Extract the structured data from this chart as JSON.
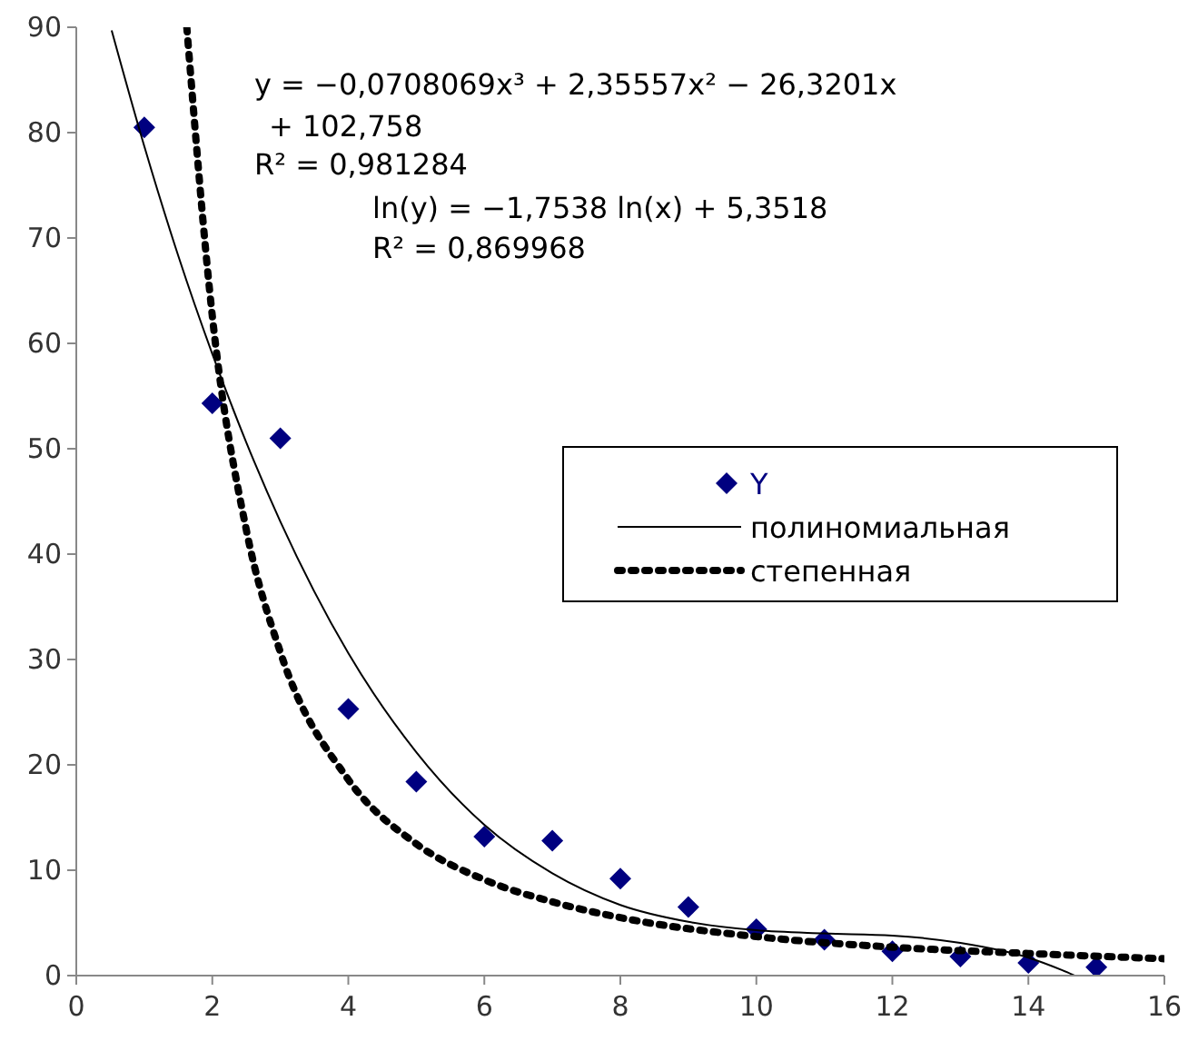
{
  "chart_data": {
    "type": "scatter",
    "xlim": [
      0,
      16
    ],
    "ylim": [
      0,
      90
    ],
    "xticks": [
      0,
      2,
      4,
      6,
      8,
      10,
      12,
      14,
      16
    ],
    "yticks": [
      0,
      10,
      20,
      30,
      40,
      50,
      60,
      70,
      80,
      90
    ],
    "grid": false,
    "legend": "right",
    "annotations": [
      "y = −0,0708069x³ + 2,35557x² − 26,3201x",
      "+ 102,758",
      "R² = 0,981284",
      "ln(y) = −1,7538 ln(x) + 5,3518",
      "R² = 0,869968"
    ],
    "series": [
      {
        "name": "Y",
        "color": "#000080",
        "marker": "diamond",
        "x": [
          1,
          2,
          3,
          4,
          5,
          6,
          7,
          8,
          9,
          10,
          11,
          12,
          13,
          14,
          15
        ],
        "values": [
          80.5,
          54.3,
          51,
          25.3,
          18.4,
          13.2,
          12.8,
          9.2,
          6.5,
          4.4,
          3.4,
          2.3,
          1.8,
          1.2,
          0.8
        ]
      },
      {
        "name": "полиномиальная",
        "type": "line",
        "color": "#000000",
        "marker": "none",
        "line_style": "solid",
        "x": [
          0.52,
          1,
          1.5,
          2,
          2.5,
          3,
          4,
          5,
          6,
          7,
          8,
          9,
          10,
          11,
          12,
          13,
          14,
          14.5,
          14.68
        ],
        "values": [
          89.7,
          78.7,
          68.3,
          59,
          50.6,
          43.1,
          30.6,
          21.2,
          14.3,
          9.7,
          6.7,
          5.1,
          4.3,
          4,
          3.8,
          3.1,
          1.7,
          0.5,
          0
        ]
      },
      {
        "name": "степенная",
        "type": "line",
        "color": "#000000",
        "marker": "none",
        "line_style": "dotted",
        "x": [
          1.625,
          2,
          2.5,
          3,
          4,
          5,
          6,
          7,
          8,
          10,
          12,
          14,
          16
        ],
        "values": [
          90,
          62.6,
          42.3,
          30.7,
          18.6,
          12.5,
          9.1,
          7,
          5.5,
          3.7,
          2.7,
          2.1,
          1.6
        ]
      }
    ]
  }
}
